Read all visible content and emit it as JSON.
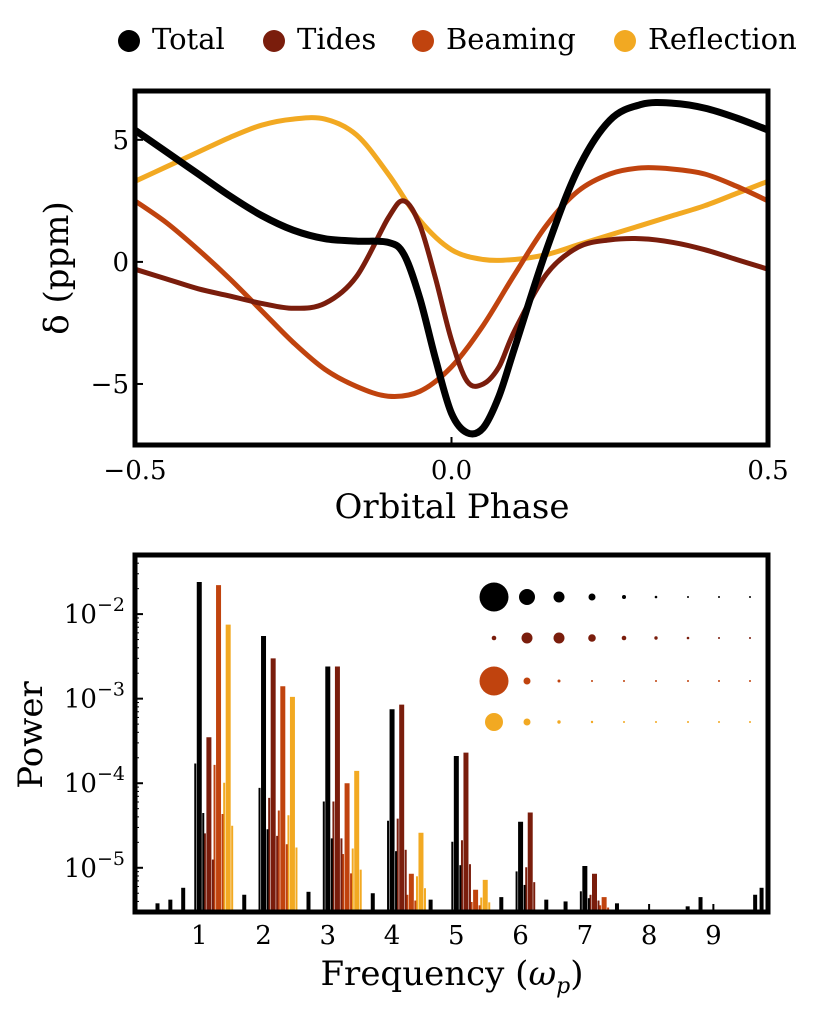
{
  "colors": {
    "total": "#000000",
    "tides": "#7a1d0c",
    "beaming": "#c0430e",
    "reflection": "#f2a922"
  },
  "legend": [
    {
      "key": "total",
      "label": "Total"
    },
    {
      "key": "tides",
      "label": "Tides"
    },
    {
      "key": "beaming",
      "label": "Beaming"
    },
    {
      "key": "reflection",
      "label": "Reflection"
    }
  ],
  "chart_data": [
    {
      "type": "line",
      "xlabel": "Orbital Phase",
      "ylabel": "δ (ppm)",
      "xlim": [
        -0.5,
        0.5
      ],
      "ylim": [
        -7.5,
        7.0
      ],
      "xticks": [
        {
          "value": -0.5,
          "label": "−0.5"
        },
        {
          "value": 0.0,
          "label": "0.0"
        },
        {
          "value": 0.5,
          "label": "0.5"
        }
      ],
      "yticks": [
        {
          "value": 5,
          "label": "5"
        },
        {
          "value": 0,
          "label": "0"
        },
        {
          "value": -5,
          "label": "−5"
        }
      ],
      "series": [
        {
          "key": "reflection",
          "name": "Reflection",
          "x": [
            -0.5,
            -0.45,
            -0.4,
            -0.35,
            -0.3,
            -0.25,
            -0.2,
            -0.15,
            -0.1,
            -0.05,
            0.0,
            0.05,
            0.1,
            0.15,
            0.2,
            0.25,
            0.3,
            0.35,
            0.4,
            0.45,
            0.5
          ],
          "y": [
            3.3,
            3.9,
            4.5,
            5.1,
            5.6,
            5.85,
            5.85,
            5.2,
            3.6,
            1.7,
            0.5,
            0.1,
            0.1,
            0.3,
            0.7,
            1.1,
            1.5,
            1.9,
            2.3,
            2.8,
            3.3
          ]
        },
        {
          "key": "beaming",
          "name": "Beaming",
          "x": [
            -0.5,
            -0.45,
            -0.4,
            -0.35,
            -0.3,
            -0.25,
            -0.2,
            -0.15,
            -0.1,
            -0.05,
            0.0,
            0.05,
            0.1,
            0.15,
            0.2,
            0.25,
            0.3,
            0.35,
            0.4,
            0.45,
            0.5
          ],
          "y": [
            2.5,
            1.6,
            0.5,
            -0.7,
            -2.0,
            -3.3,
            -4.4,
            -5.1,
            -5.5,
            -5.3,
            -4.3,
            -2.6,
            -0.5,
            1.5,
            2.9,
            3.6,
            3.85,
            3.8,
            3.6,
            3.1,
            2.5
          ]
        },
        {
          "key": "tides",
          "name": "Tides",
          "x": [
            -0.5,
            -0.45,
            -0.4,
            -0.35,
            -0.3,
            -0.25,
            -0.2,
            -0.15,
            -0.1,
            -0.075,
            -0.05,
            -0.025,
            0.0,
            0.025,
            0.05,
            0.075,
            0.1,
            0.15,
            0.2,
            0.25,
            0.3,
            0.35,
            0.4,
            0.45,
            0.5
          ],
          "y": [
            -0.3,
            -0.7,
            -1.1,
            -1.4,
            -1.7,
            -1.9,
            -1.7,
            -0.6,
            1.8,
            2.5,
            1.5,
            -0.7,
            -3.2,
            -4.9,
            -5.0,
            -4.3,
            -2.8,
            -0.5,
            0.6,
            0.9,
            0.95,
            0.8,
            0.5,
            0.1,
            -0.3
          ]
        },
        {
          "key": "total",
          "name": "Total",
          "x": [
            -0.5,
            -0.45,
            -0.4,
            -0.35,
            -0.3,
            -0.25,
            -0.2,
            -0.15,
            -0.1,
            -0.075,
            -0.05,
            -0.025,
            0.0,
            0.025,
            0.05,
            0.075,
            0.1,
            0.15,
            0.2,
            0.25,
            0.3,
            0.35,
            0.4,
            0.45,
            0.5
          ],
          "y": [
            5.4,
            4.5,
            3.6,
            2.7,
            1.9,
            1.3,
            0.95,
            0.85,
            0.8,
            0.3,
            -1.5,
            -4.0,
            -6.2,
            -7.0,
            -6.8,
            -5.5,
            -3.5,
            0.5,
            3.8,
            5.8,
            6.45,
            6.5,
            6.3,
            5.9,
            5.4
          ]
        }
      ]
    },
    {
      "type": "bar",
      "xlabel": "Frequency (ω_p)",
      "ylabel": "Power",
      "yscale": "log",
      "xlim": [
        0.0,
        9.85
      ],
      "ylim": [
        3e-06,
        0.05
      ],
      "xticks": [
        1,
        2,
        3,
        4,
        5,
        6,
        7,
        8,
        9
      ],
      "yticks": [
        {
          "value": 0.01,
          "base": "10",
          "exp": "−2"
        },
        {
          "value": 0.001,
          "base": "10",
          "exp": "−3"
        },
        {
          "value": 0.0001,
          "base": "10",
          "exp": "−4"
        },
        {
          "value": 1e-05,
          "base": "10",
          "exp": "−5"
        }
      ],
      "peaks": [
        {
          "series": "total",
          "x": 1.0,
          "power": 0.024
        },
        {
          "series": "tides",
          "x": 1.15,
          "power": 0.00035
        },
        {
          "series": "beaming",
          "x": 1.3,
          "power": 0.022
        },
        {
          "series": "reflection",
          "x": 1.45,
          "power": 0.0075
        },
        {
          "series": "total",
          "x": 2.0,
          "power": 0.0055
        },
        {
          "series": "tides",
          "x": 2.15,
          "power": 0.003
        },
        {
          "series": "beaming",
          "x": 2.3,
          "power": 0.0014
        },
        {
          "series": "reflection",
          "x": 2.45,
          "power": 0.00105
        },
        {
          "series": "total",
          "x": 3.0,
          "power": 0.0024
        },
        {
          "series": "tides",
          "x": 3.15,
          "power": 0.0024
        },
        {
          "series": "beaming",
          "x": 3.3,
          "power": 0.0001
        },
        {
          "series": "reflection",
          "x": 3.45,
          "power": 0.00014
        },
        {
          "series": "total",
          "x": 4.0,
          "power": 0.00075
        },
        {
          "series": "tides",
          "x": 4.15,
          "power": 0.00085
        },
        {
          "series": "beaming",
          "x": 4.3,
          "power": 8.5e-06
        },
        {
          "series": "reflection",
          "x": 4.45,
          "power": 2.6e-05
        },
        {
          "series": "total",
          "x": 5.0,
          "power": 0.00021
        },
        {
          "series": "tides",
          "x": 5.15,
          "power": 0.00023
        },
        {
          "series": "beaming",
          "x": 5.3,
          "power": 5.5e-06
        },
        {
          "series": "reflection",
          "x": 5.45,
          "power": 7.2e-06
        },
        {
          "series": "total",
          "x": 6.0,
          "power": 3.5e-05
        },
        {
          "series": "tides",
          "x": 6.15,
          "power": 4.5e-05
        },
        {
          "series": "total",
          "x": 7.0,
          "power": 1.05e-05
        },
        {
          "series": "tides",
          "x": 7.15,
          "power": 8.5e-06
        },
        {
          "series": "beaming",
          "x": 7.3,
          "power": 4.5e-06
        }
      ],
      "noise_floor_points": [
        {
          "x": 0.35,
          "power": 3.8e-06
        },
        {
          "x": 0.55,
          "power": 4.2e-06
        },
        {
          "x": 0.75,
          "power": 5.8e-06
        },
        {
          "x": 1.7,
          "power": 4.8e-06
        },
        {
          "x": 2.7,
          "power": 5.2e-06
        },
        {
          "x": 3.7,
          "power": 5e-06
        },
        {
          "x": 4.6,
          "power": 4.2e-06
        },
        {
          "x": 5.7,
          "power": 4.5e-06
        },
        {
          "x": 6.4,
          "power": 4.2e-06
        },
        {
          "x": 6.7,
          "power": 4e-06
        },
        {
          "x": 7.5,
          "power": 3.8e-06
        },
        {
          "x": 8.6,
          "power": 3.5e-06
        },
        {
          "x": 8.8,
          "power": 4.5e-06
        },
        {
          "x": 9.65,
          "power": 4.8e-06
        },
        {
          "x": 9.75,
          "power": 5.8e-06
        }
      ],
      "inset_dot_grid": {
        "rows": [
          "total",
          "tides",
          "beaming",
          "reflection"
        ],
        "relative_sizes": [
          [
            1.0,
            0.55,
            0.38,
            0.24,
            0.14,
            0.09,
            0.06,
            0.05,
            0.04
          ],
          [
            0.16,
            0.38,
            0.38,
            0.26,
            0.16,
            0.12,
            0.09,
            0.07,
            0.05
          ],
          [
            1.0,
            0.24,
            0.1,
            0.07,
            0.05,
            0.04,
            0.04,
            0.03,
            0.03
          ],
          [
            0.62,
            0.24,
            0.12,
            0.08,
            0.06,
            0.05,
            0.04,
            0.03,
            0.03
          ]
        ]
      }
    }
  ]
}
